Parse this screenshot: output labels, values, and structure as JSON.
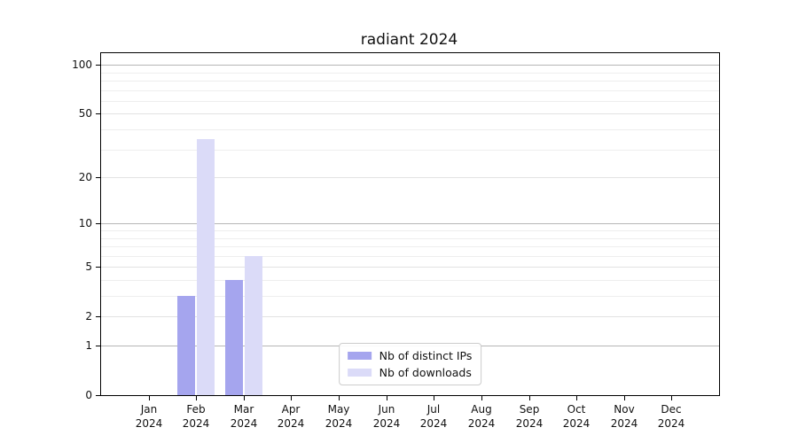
{
  "chart_data": {
    "type": "bar",
    "title": "radiant 2024",
    "categories": [
      "Jan 2024",
      "Feb 2024",
      "Mar 2024",
      "Apr 2024",
      "May 2024",
      "Jun 2024",
      "Jul 2024",
      "Aug 2024",
      "Sep 2024",
      "Oct 2024",
      "Nov 2024",
      "Dec 2024"
    ],
    "series": [
      {
        "name": "Nb of distinct IPs",
        "color": "#a5a5ee",
        "values": [
          0,
          3,
          4,
          0,
          0,
          0,
          0,
          0,
          0,
          0,
          0,
          0
        ]
      },
      {
        "name": "Nb of downloads",
        "color": "#dbdbf8",
        "values": [
          0,
          35,
          6,
          0,
          0,
          0,
          0,
          0,
          0,
          0,
          0,
          0
        ]
      }
    ],
    "y_ticks": [
      0,
      1,
      2,
      5,
      10,
      20,
      50,
      100
    ],
    "ylim": [
      0,
      118
    ],
    "yscale": "log1p",
    "grid": true,
    "legend_position": "lower center",
    "xlabel": "",
    "ylabel": ""
  },
  "colors": {
    "background": "#ffffff",
    "spine": "#000000",
    "text": "#111111",
    "grid_decade": "#b6b6b6",
    "grid_major": "#e2e2e2",
    "grid_minor": "#eeeeee"
  }
}
